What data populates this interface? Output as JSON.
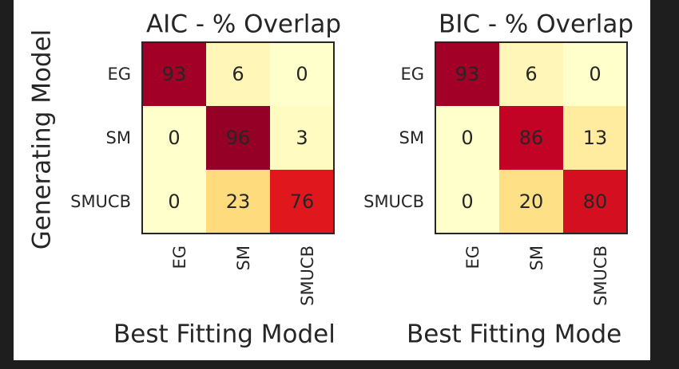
{
  "figure": {
    "ylabel": "Generating Model"
  },
  "chart_data": [
    {
      "type": "heatmap",
      "title": "AIC - % Overlap",
      "xlabel": "Best Fitting Model",
      "ylabel": "Generating Model",
      "x_categories": [
        "EG",
        "SM",
        "SMUCB"
      ],
      "y_categories": [
        "EG",
        "SM",
        "SMUCB"
      ],
      "values": [
        [
          93,
          6,
          0
        ],
        [
          0,
          96,
          3
        ],
        [
          0,
          23,
          76
        ]
      ],
      "value_range": [
        0,
        100
      ],
      "colormap": [
        "#ffffcc",
        "#ffeda0",
        "#fed976",
        "#feb24c",
        "#fd8d3c",
        "#fc4e2a",
        "#e31a1c",
        "#bd0026",
        "#800026"
      ]
    },
    {
      "type": "heatmap",
      "title": "BIC - % Overlap",
      "xlabel": "Best Fitting Mode",
      "x_categories": [
        "EG",
        "SM",
        "SMUCB"
      ],
      "y_categories": [
        "EG",
        "SM",
        "SMUCB"
      ],
      "values": [
        [
          93,
          6,
          0
        ],
        [
          0,
          86,
          13
        ],
        [
          0,
          20,
          80
        ]
      ],
      "value_range": [
        0,
        100
      ],
      "colormap": [
        "#ffffcc",
        "#ffeda0",
        "#fed976",
        "#feb24c",
        "#fd8d3c",
        "#fc4e2a",
        "#e31a1c",
        "#bd0026",
        "#800026"
      ]
    }
  ]
}
